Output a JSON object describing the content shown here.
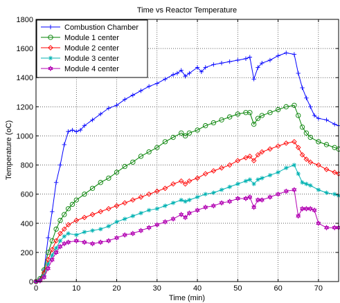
{
  "chart_data": {
    "type": "line",
    "title": "Time vs Reactor Temperature",
    "xlabel": "Time (min)",
    "ylabel": "Temperature (oC)",
    "xlim": [
      0,
      75
    ],
    "ylim": [
      0,
      1800
    ],
    "xticks": [
      0,
      10,
      20,
      30,
      40,
      50,
      60,
      70
    ],
    "yticks": [
      0,
      200,
      400,
      600,
      800,
      1000,
      1200,
      1400,
      1600,
      1800
    ],
    "grid": true,
    "legend_position": "top-left",
    "series": [
      {
        "name": "Combustion Chamber",
        "color": "#0000ff",
        "marker": "plus",
        "points": [
          [
            0,
            0
          ],
          [
            1,
            20
          ],
          [
            2,
            80
          ],
          [
            3,
            300
          ],
          [
            4,
            480
          ],
          [
            5,
            680
          ],
          [
            6,
            800
          ],
          [
            7,
            940
          ],
          [
            8,
            1030
          ],
          [
            9,
            1040
          ],
          [
            10,
            1030
          ],
          [
            11,
            1040
          ],
          [
            12,
            1070
          ],
          [
            14,
            1110
          ],
          [
            16,
            1150
          ],
          [
            18,
            1190
          ],
          [
            20,
            1210
          ],
          [
            22,
            1250
          ],
          [
            24,
            1280
          ],
          [
            26,
            1310
          ],
          [
            28,
            1340
          ],
          [
            30,
            1360
          ],
          [
            32,
            1390
          ],
          [
            34,
            1420
          ],
          [
            35,
            1430
          ],
          [
            36,
            1450
          ],
          [
            37,
            1410
          ],
          [
            38,
            1430
          ],
          [
            40,
            1470
          ],
          [
            41,
            1440
          ],
          [
            42,
            1470
          ],
          [
            44,
            1490
          ],
          [
            46,
            1500
          ],
          [
            48,
            1510
          ],
          [
            50,
            1520
          ],
          [
            52,
            1530
          ],
          [
            53,
            1540
          ],
          [
            54,
            1390
          ],
          [
            55,
            1470
          ],
          [
            56,
            1500
          ],
          [
            58,
            1520
          ],
          [
            60,
            1550
          ],
          [
            62,
            1570
          ],
          [
            64,
            1560
          ],
          [
            65,
            1430
          ],
          [
            66,
            1330
          ],
          [
            67,
            1260
          ],
          [
            68,
            1200
          ],
          [
            69,
            1140
          ],
          [
            70,
            1120
          ],
          [
            72,
            1110
          ],
          [
            74,
            1080
          ],
          [
            75,
            1070
          ]
        ]
      },
      {
        "name": "Module 1 center",
        "color": "#008000",
        "marker": "circle",
        "points": [
          [
            0,
            0
          ],
          [
            1,
            20
          ],
          [
            2,
            80
          ],
          [
            3,
            200
          ],
          [
            4,
            280
          ],
          [
            5,
            360
          ],
          [
            6,
            420
          ],
          [
            7,
            460
          ],
          [
            8,
            500
          ],
          [
            9,
            530
          ],
          [
            10,
            560
          ],
          [
            12,
            600
          ],
          [
            14,
            640
          ],
          [
            16,
            680
          ],
          [
            18,
            710
          ],
          [
            20,
            750
          ],
          [
            22,
            790
          ],
          [
            24,
            820
          ],
          [
            26,
            860
          ],
          [
            28,
            890
          ],
          [
            30,
            920
          ],
          [
            32,
            960
          ],
          [
            34,
            990
          ],
          [
            36,
            1020
          ],
          [
            37,
            1000
          ],
          [
            38,
            1020
          ],
          [
            40,
            1040
          ],
          [
            42,
            1070
          ],
          [
            44,
            1090
          ],
          [
            46,
            1110
          ],
          [
            48,
            1130
          ],
          [
            50,
            1150
          ],
          [
            52,
            1160
          ],
          [
            53,
            1160
          ],
          [
            54,
            1080
          ],
          [
            55,
            1120
          ],
          [
            56,
            1140
          ],
          [
            58,
            1160
          ],
          [
            60,
            1180
          ],
          [
            62,
            1200
          ],
          [
            64,
            1210
          ],
          [
            65,
            1140
          ],
          [
            66,
            1060
          ],
          [
            67,
            1020
          ],
          [
            68,
            990
          ],
          [
            70,
            960
          ],
          [
            72,
            940
          ],
          [
            74,
            920
          ],
          [
            75,
            910
          ]
        ]
      },
      {
        "name": "Module 2 center",
        "color": "#ff0000",
        "marker": "diamond",
        "points": [
          [
            0,
            0
          ],
          [
            1,
            10
          ],
          [
            2,
            60
          ],
          [
            3,
            150
          ],
          [
            4,
            220
          ],
          [
            5,
            280
          ],
          [
            6,
            330
          ],
          [
            7,
            360
          ],
          [
            8,
            390
          ],
          [
            10,
            420
          ],
          [
            12,
            440
          ],
          [
            14,
            460
          ],
          [
            16,
            480
          ],
          [
            18,
            500
          ],
          [
            20,
            520
          ],
          [
            22,
            540
          ],
          [
            24,
            560
          ],
          [
            26,
            580
          ],
          [
            28,
            600
          ],
          [
            30,
            620
          ],
          [
            32,
            640
          ],
          [
            34,
            670
          ],
          [
            36,
            690
          ],
          [
            37,
            670
          ],
          [
            38,
            690
          ],
          [
            40,
            710
          ],
          [
            42,
            740
          ],
          [
            44,
            760
          ],
          [
            46,
            780
          ],
          [
            48,
            800
          ],
          [
            50,
            830
          ],
          [
            52,
            850
          ],
          [
            53,
            860
          ],
          [
            54,
            830
          ],
          [
            55,
            870
          ],
          [
            56,
            890
          ],
          [
            58,
            910
          ],
          [
            60,
            930
          ],
          [
            62,
            950
          ],
          [
            64,
            960
          ],
          [
            65,
            920
          ],
          [
            66,
            870
          ],
          [
            67,
            840
          ],
          [
            68,
            820
          ],
          [
            70,
            800
          ],
          [
            72,
            770
          ],
          [
            74,
            750
          ],
          [
            75,
            740
          ]
        ]
      },
      {
        "name": "Module 3 center",
        "color": "#00b2b2",
        "marker": "star",
        "points": [
          [
            0,
            0
          ],
          [
            1,
            10
          ],
          [
            2,
            40
          ],
          [
            3,
            120
          ],
          [
            4,
            180
          ],
          [
            5,
            230
          ],
          [
            6,
            280
          ],
          [
            7,
            310
          ],
          [
            8,
            330
          ],
          [
            10,
            320
          ],
          [
            12,
            340
          ],
          [
            14,
            350
          ],
          [
            16,
            360
          ],
          [
            18,
            380
          ],
          [
            20,
            410
          ],
          [
            22,
            430
          ],
          [
            24,
            450
          ],
          [
            26,
            470
          ],
          [
            28,
            490
          ],
          [
            30,
            500
          ],
          [
            32,
            520
          ],
          [
            34,
            540
          ],
          [
            36,
            560
          ],
          [
            37,
            550
          ],
          [
            38,
            560
          ],
          [
            40,
            580
          ],
          [
            42,
            600
          ],
          [
            44,
            610
          ],
          [
            46,
            630
          ],
          [
            48,
            650
          ],
          [
            50,
            670
          ],
          [
            52,
            690
          ],
          [
            53,
            700
          ],
          [
            54,
            670
          ],
          [
            55,
            700
          ],
          [
            56,
            710
          ],
          [
            58,
            730
          ],
          [
            60,
            750
          ],
          [
            62,
            780
          ],
          [
            64,
            800
          ],
          [
            65,
            740
          ],
          [
            66,
            680
          ],
          [
            67,
            670
          ],
          [
            68,
            660
          ],
          [
            70,
            630
          ],
          [
            72,
            610
          ],
          [
            74,
            600
          ],
          [
            75,
            590
          ]
        ]
      },
      {
        "name": "Module 4 center",
        "color": "#b200b2",
        "marker": "hexagram",
        "points": [
          [
            0,
            0
          ],
          [
            1,
            5
          ],
          [
            2,
            30
          ],
          [
            3,
            90
          ],
          [
            4,
            150
          ],
          [
            5,
            200
          ],
          [
            6,
            240
          ],
          [
            7,
            260
          ],
          [
            8,
            270
          ],
          [
            10,
            280
          ],
          [
            12,
            270
          ],
          [
            14,
            260
          ],
          [
            16,
            270
          ],
          [
            18,
            280
          ],
          [
            20,
            300
          ],
          [
            22,
            320
          ],
          [
            24,
            330
          ],
          [
            26,
            350
          ],
          [
            28,
            370
          ],
          [
            30,
            390
          ],
          [
            32,
            410
          ],
          [
            34,
            430
          ],
          [
            36,
            460
          ],
          [
            37,
            440
          ],
          [
            38,
            470
          ],
          [
            40,
            490
          ],
          [
            42,
            510
          ],
          [
            44,
            520
          ],
          [
            46,
            540
          ],
          [
            48,
            550
          ],
          [
            50,
            570
          ],
          [
            52,
            570
          ],
          [
            53,
            580
          ],
          [
            54,
            510
          ],
          [
            55,
            560
          ],
          [
            56,
            560
          ],
          [
            58,
            580
          ],
          [
            60,
            600
          ],
          [
            62,
            620
          ],
          [
            64,
            630
          ],
          [
            65,
            450
          ],
          [
            66,
            500
          ],
          [
            67,
            500
          ],
          [
            68,
            500
          ],
          [
            69,
            490
          ],
          [
            70,
            400
          ],
          [
            72,
            370
          ],
          [
            74,
            370
          ],
          [
            75,
            370
          ]
        ]
      }
    ]
  }
}
